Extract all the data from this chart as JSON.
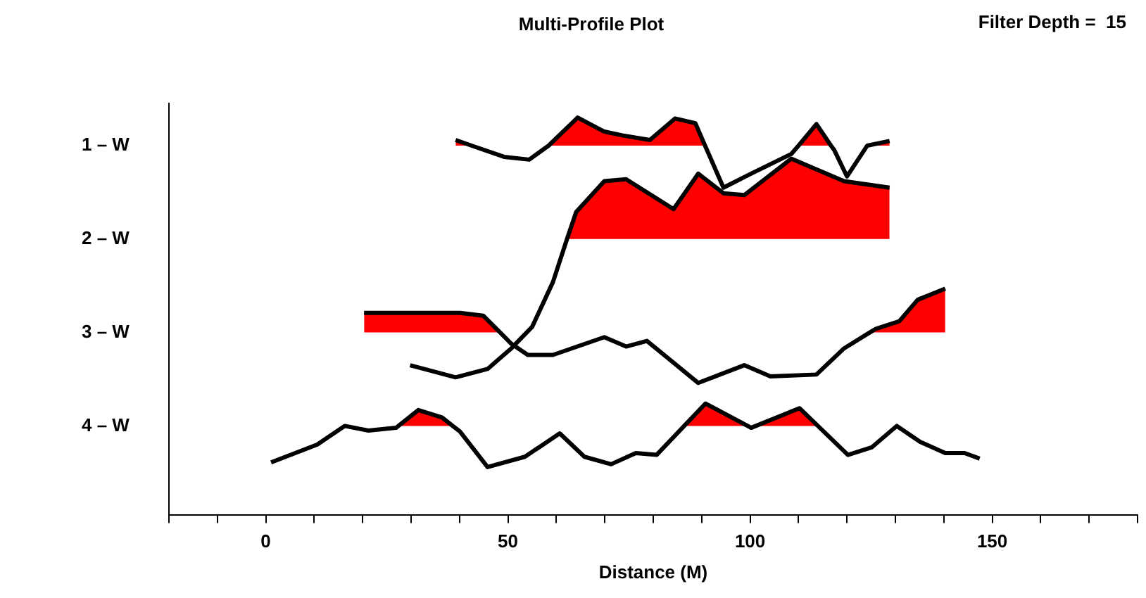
{
  "chart_data": {
    "type": "line",
    "title": "Multi-Profile Plot",
    "xlabel": "Distance (M)",
    "annotations": [
      "Filter Depth =  15"
    ],
    "xlim": [
      -20,
      180
    ],
    "xticks": [
      {
        "value": -20,
        "label": null
      },
      {
        "value": -10,
        "label": null
      },
      0,
      {
        "value": 10,
        "label": null
      },
      {
        "value": 20,
        "label": null
      },
      {
        "value": 30,
        "label": null
      },
      {
        "value": 40,
        "label": null
      },
      50,
      {
        "value": 60,
        "label": null
      },
      {
        "value": 70,
        "label": null
      },
      {
        "value": 80,
        "label": null
      },
      {
        "value": 90,
        "label": null
      },
      100,
      {
        "value": 110,
        "label": null
      },
      {
        "value": 120,
        "label": null
      },
      {
        "value": 130,
        "label": null
      },
      {
        "value": 140,
        "label": null
      },
      150,
      {
        "value": 160,
        "label": null
      },
      {
        "value": 170,
        "label": null
      },
      {
        "value": 180,
        "label": null
      }
    ],
    "ylim": [
      4.95,
      0.55
    ],
    "yticks": [
      {
        "value": 1,
        "label": "1 – W"
      },
      {
        "value": 2,
        "label": "2 – W"
      },
      {
        "value": 3,
        "label": "3 – W"
      },
      {
        "value": 4,
        "label": "4 – W"
      }
    ],
    "grid": false,
    "legend": false,
    "marker": "none",
    "line_style": "solid",
    "series": [
      {
        "type": "area",
        "color": "#ff0000",
        "x": [
          39.2,
          39.2,
          42.5
        ],
        "values": [
          1,
          0.94,
          1
        ]
      },
      {
        "type": "area",
        "color": "#ff0000",
        "x": [
          58.4,
          64.4,
          69.9,
          73.6,
          79.3,
          84.5,
          88.7,
          90.7
        ],
        "values": [
          1,
          0.7,
          0.85,
          0.89,
          0.94,
          0.71,
          0.76,
          1
        ]
      },
      {
        "type": "area",
        "color": "#ff0000",
        "x": [
          110,
          113.7,
          116.7
        ],
        "values": [
          1,
          0.77,
          1
        ]
      },
      {
        "type": "area",
        "color": "#ff0000",
        "x": [
          124.2,
          128.8,
          128.8
        ],
        "values": [
          1,
          0.95,
          1
        ]
      },
      {
        "type": "area",
        "color": "#ff0000",
        "x": [
          62.2,
          64.1,
          69.9,
          74.4,
          84.2,
          89.3,
          94.5,
          98.8,
          108.5,
          119.4,
          128.8,
          128.8
        ],
        "values": [
          2,
          1.71,
          1.38,
          1.36,
          1.68,
          1.3,
          1.51,
          1.53,
          1.14,
          1.38,
          1.45,
          2
        ]
      },
      {
        "type": "area",
        "color": "#ff0000",
        "x": [
          20.3,
          20.3,
          40.1,
          44.9,
          48.4
        ],
        "values": [
          3,
          2.79,
          2.79,
          2.82,
          3
        ]
      },
      {
        "type": "area",
        "color": "#ff0000",
        "x": [
          124.7,
          126,
          130.8,
          134.6,
          140.3,
          140.3
        ],
        "values": [
          3,
          2.96,
          2.88,
          2.65,
          2.53,
          3
        ]
      },
      {
        "type": "area",
        "color": "#ff0000",
        "x": [
          27.4,
          31.5,
          36.4,
          38.6
        ],
        "values": [
          4,
          3.83,
          3.91,
          4
        ]
      },
      {
        "type": "area",
        "color": "#ff0000",
        "x": [
          86.4,
          90.8,
          99.5
        ],
        "values": [
          4,
          3.76,
          4
        ]
      },
      {
        "type": "area",
        "color": "#ff0000",
        "x": [
          101.2,
          110.2,
          114
        ],
        "values": [
          4,
          3.81,
          4
        ]
      },
      {
        "type": "line",
        "color": "#000000",
        "x": [
          39.2,
          42.5,
          49.2,
          54.4,
          58.4,
          64.4,
          69.9,
          73.6,
          79.3,
          84.5,
          88.7,
          90.7,
          94.5,
          100.2,
          108.5,
          110,
          113.7,
          116.7,
          117.4,
          120,
          124.2,
          128.8
        ],
        "values": [
          0.94,
          1,
          1.12,
          1.15,
          1,
          0.7,
          0.85,
          0.89,
          0.94,
          0.71,
          0.76,
          1,
          1.45,
          1.3,
          1.09,
          1,
          0.77,
          1,
          1.05,
          1.33,
          1,
          0.95
        ]
      },
      {
        "type": "line",
        "color": "#000000",
        "x": [
          29.8,
          39.2,
          45.8,
          50.7,
          55,
          59.3,
          62.2,
          64.1,
          69.9,
          74.4,
          84.2,
          89.3,
          94.5,
          98.8,
          108.5,
          119.4,
          128.8
        ],
        "values": [
          3.35,
          3.48,
          3.39,
          3.17,
          2.94,
          2.46,
          2,
          1.71,
          1.38,
          1.36,
          1.68,
          1.3,
          1.51,
          1.53,
          1.14,
          1.38,
          1.45
        ]
      },
      {
        "type": "line",
        "color": "#000000",
        "x": [
          20.3,
          40.1,
          44.9,
          48.4,
          50.7,
          54.1,
          59.3,
          69.9,
          74.4,
          78.7,
          89.3,
          98.8,
          104.2,
          113.7,
          119.4,
          124.7,
          126,
          130.8,
          134.6,
          140.3
        ],
        "values": [
          2.79,
          2.79,
          2.82,
          3,
          3.12,
          3.24,
          3.24,
          3.05,
          3.15,
          3.09,
          3.54,
          3.35,
          3.47,
          3.45,
          3.17,
          3,
          2.96,
          2.88,
          2.65,
          2.53
        ]
      },
      {
        "type": "line",
        "color": "#000000",
        "x": [
          1.1,
          10.6,
          16.3,
          21.2,
          26.9,
          27.4,
          31.5,
          36.4,
          38.6,
          40.1,
          45.8,
          53.5,
          60.7,
          65.8,
          71.3,
          76.4,
          80.7,
          86.4,
          90.8,
          99.5,
          100.2,
          101.2,
          110.2,
          114,
          120.2,
          125.1,
          130.3,
          135.1,
          140.3,
          144.3,
          147.4
        ],
        "values": [
          4.39,
          4.2,
          4,
          4.05,
          4.02,
          4,
          3.83,
          3.91,
          4,
          4.06,
          4.44,
          4.33,
          4.08,
          4.33,
          4.41,
          4.29,
          4.31,
          4,
          3.76,
          4,
          4.02,
          4,
          3.81,
          4,
          4.31,
          4.23,
          4,
          4.17,
          4.29,
          4.29,
          4.35
        ]
      }
    ]
  }
}
